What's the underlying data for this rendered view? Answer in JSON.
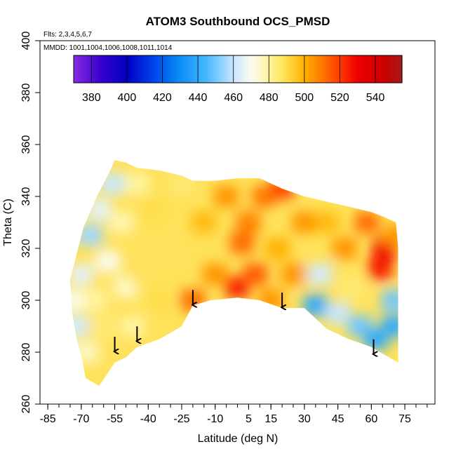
{
  "chart_data": {
    "type": "heatmap",
    "title": "ATOM3 Southbound OCS_PMSD",
    "flights_note": "Flts: 2,3,4,5,6,7",
    "mmdd_note": "MMDD: 1001,1004,1006,1008,1011,1014",
    "xlabel": "Latitude (deg N)",
    "ylabel": "Theta (C)",
    "xlim": [
      -85,
      85
    ],
    "ylim": [
      260,
      400
    ],
    "xticks": [
      -85,
      -70,
      -55,
      -40,
      -25,
      -10,
      5,
      15,
      30,
      45,
      60,
      75
    ],
    "xtick_labels": [
      "-85",
      "-70",
      "-55",
      "-40",
      "-25",
      "-10",
      "5",
      "15",
      "30",
      "45",
      "60",
      "75"
    ],
    "yticks": [
      260,
      280,
      300,
      320,
      340,
      360,
      380,
      400
    ],
    "ytick_labels": [
      "260",
      "280",
      "300",
      "320",
      "340",
      "360",
      "380",
      "400"
    ],
    "colorbar": {
      "min": 370,
      "max": 555,
      "tick_values": [
        380,
        400,
        420,
        440,
        460,
        480,
        500,
        520,
        540
      ],
      "tick_labels": [
        "380",
        "400",
        "420",
        "440",
        "460",
        "480",
        "500",
        "520",
        "540"
      ],
      "stops": [
        {
          "v": 370,
          "c": "#8a2be2"
        },
        {
          "v": 385,
          "c": "#3b00d0"
        },
        {
          "v": 400,
          "c": "#0000c0"
        },
        {
          "v": 415,
          "c": "#0044ee"
        },
        {
          "v": 430,
          "c": "#0a8ef5"
        },
        {
          "v": 445,
          "c": "#46b8ff"
        },
        {
          "v": 460,
          "c": "#c8e6ff"
        },
        {
          "v": 470,
          "c": "#fbfbf0"
        },
        {
          "v": 480,
          "c": "#fff4a0"
        },
        {
          "v": 490,
          "c": "#ffde4a"
        },
        {
          "v": 500,
          "c": "#ffb000"
        },
        {
          "v": 510,
          "c": "#ff7800"
        },
        {
          "v": 520,
          "c": "#ff3a00"
        },
        {
          "v": 530,
          "c": "#ee0000"
        },
        {
          "v": 545,
          "c": "#c80000"
        },
        {
          "v": 555,
          "c": "#a81a1a"
        }
      ]
    },
    "data_boundary": {
      "upper": [
        [
          -75,
          308
        ],
        [
          -72,
          318
        ],
        [
          -69,
          328
        ],
        [
          -66,
          334
        ],
        [
          -63,
          340
        ],
        [
          -60,
          345
        ],
        [
          -57,
          350
        ],
        [
          -55,
          354
        ],
        [
          -50,
          353
        ],
        [
          -45,
          351
        ],
        [
          -35,
          350
        ],
        [
          -30,
          349
        ],
        [
          -25,
          348
        ],
        [
          -20,
          346
        ],
        [
          -10,
          346
        ],
        [
          0,
          347
        ],
        [
          10,
          347
        ],
        [
          20,
          343
        ],
        [
          30,
          340
        ],
        [
          40,
          338
        ],
        [
          50,
          336
        ],
        [
          60,
          334
        ],
        [
          66,
          332
        ],
        [
          71,
          330
        ],
        [
          72,
          320
        ],
        [
          72,
          310
        ],
        [
          72,
          300
        ]
      ],
      "lower": [
        [
          -75,
          308
        ],
        [
          -74,
          295
        ],
        [
          -72,
          285
        ],
        [
          -70,
          279
        ],
        [
          -68,
          270
        ],
        [
          -64,
          268
        ],
        [
          -62,
          267
        ],
        [
          -55,
          276
        ],
        [
          -50,
          278
        ],
        [
          -45,
          282
        ],
        [
          -35,
          285
        ],
        [
          -25,
          290
        ],
        [
          -20,
          298
        ],
        [
          -12,
          300
        ],
        [
          0,
          301
        ],
        [
          10,
          300
        ],
        [
          20,
          297
        ],
        [
          30,
          297
        ],
        [
          40,
          289
        ],
        [
          50,
          285
        ],
        [
          60,
          282
        ],
        [
          66,
          279
        ],
        [
          72,
          276
        ],
        [
          72,
          300
        ]
      ]
    },
    "field_samples": [
      {
        "lat": -74,
        "theta": 300,
        "value": 470
      },
      {
        "lat": -72,
        "theta": 290,
        "value": 462
      },
      {
        "lat": -70,
        "theta": 310,
        "value": 465
      },
      {
        "lat": -68,
        "theta": 280,
        "value": 475
      },
      {
        "lat": -66,
        "theta": 325,
        "value": 455
      },
      {
        "lat": -64,
        "theta": 300,
        "value": 480
      },
      {
        "lat": -62,
        "theta": 335,
        "value": 465
      },
      {
        "lat": -60,
        "theta": 290,
        "value": 485
      },
      {
        "lat": -58,
        "theta": 315,
        "value": 470
      },
      {
        "lat": -56,
        "theta": 345,
        "value": 460
      },
      {
        "lat": -55,
        "theta": 280,
        "value": 488
      },
      {
        "lat": -52,
        "theta": 330,
        "value": 478
      },
      {
        "lat": -50,
        "theta": 305,
        "value": 475
      },
      {
        "lat": -47,
        "theta": 290,
        "value": 480
      },
      {
        "lat": -45,
        "theta": 345,
        "value": 480
      },
      {
        "lat": -42,
        "theta": 310,
        "value": 488
      },
      {
        "lat": -38,
        "theta": 335,
        "value": 490
      },
      {
        "lat": -35,
        "theta": 300,
        "value": 490
      },
      {
        "lat": -30,
        "theta": 320,
        "value": 488
      },
      {
        "lat": -25,
        "theta": 345,
        "value": 485
      },
      {
        "lat": -20,
        "theta": 300,
        "value": 512
      },
      {
        "lat": -15,
        "theta": 330,
        "value": 498
      },
      {
        "lat": -10,
        "theta": 310,
        "value": 505
      },
      {
        "lat": -5,
        "theta": 340,
        "value": 505
      },
      {
        "lat": 0,
        "theta": 305,
        "value": 525
      },
      {
        "lat": 2,
        "theta": 322,
        "value": 512
      },
      {
        "lat": 5,
        "theta": 330,
        "value": 508
      },
      {
        "lat": 8,
        "theta": 310,
        "value": 515
      },
      {
        "lat": 12,
        "theta": 340,
        "value": 510
      },
      {
        "lat": 15,
        "theta": 300,
        "value": 505
      },
      {
        "lat": 18,
        "theta": 320,
        "value": 500
      },
      {
        "lat": 20,
        "theta": 343,
        "value": 518
      },
      {
        "lat": 25,
        "theta": 310,
        "value": 505
      },
      {
        "lat": 30,
        "theta": 330,
        "value": 505
      },
      {
        "lat": 35,
        "theta": 298,
        "value": 440
      },
      {
        "lat": 37,
        "theta": 310,
        "value": 462
      },
      {
        "lat": 40,
        "theta": 330,
        "value": 498
      },
      {
        "lat": 45,
        "theta": 295,
        "value": 460
      },
      {
        "lat": 48,
        "theta": 320,
        "value": 505
      },
      {
        "lat": 52,
        "theta": 305,
        "value": 485
      },
      {
        "lat": 55,
        "theta": 290,
        "value": 450
      },
      {
        "lat": 58,
        "theta": 330,
        "value": 512
      },
      {
        "lat": 62,
        "theta": 285,
        "value": 440
      },
      {
        "lat": 64,
        "theta": 312,
        "value": 525
      },
      {
        "lat": 66,
        "theta": 320,
        "value": 530
      },
      {
        "lat": 70,
        "theta": 300,
        "value": 450
      },
      {
        "lat": 70,
        "theta": 290,
        "value": 440
      },
      {
        "lat": 71,
        "theta": 325,
        "value": 505
      }
    ],
    "arrows": [
      {
        "lat": -55,
        "theta": 280
      },
      {
        "lat": -45,
        "theta": 284
      },
      {
        "lat": -20,
        "theta": 298
      },
      {
        "lat": 20,
        "theta": 297
      },
      {
        "lat": 61,
        "theta": 279
      }
    ]
  }
}
